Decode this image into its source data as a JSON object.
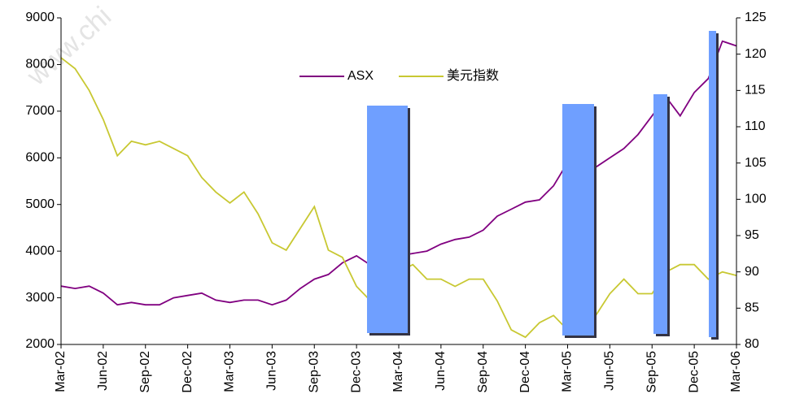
{
  "chart_data": {
    "type": "line",
    "watermark": "www.chi",
    "categories": [
      "Mar-02",
      null,
      null,
      "Jun-02",
      null,
      null,
      "Sep-02",
      null,
      null,
      "Dec-02",
      null,
      null,
      "Mar-03",
      null,
      null,
      "Jun-03",
      null,
      null,
      "Sep-03",
      null,
      null,
      "Dec-03",
      null,
      null,
      "Mar-04",
      null,
      null,
      "Jun-04",
      null,
      null,
      "Sep-04",
      null,
      null,
      "Dec-04",
      null,
      null,
      "Mar-05",
      null,
      null,
      "Jun-05",
      null,
      null,
      "Sep-05",
      null,
      null,
      "Dec-05",
      null,
      null,
      "Mar-06"
    ],
    "series": [
      {
        "name": "ASX",
        "color": "#800080",
        "axis": "y",
        "values": [
          3250,
          3200,
          3250,
          3100,
          2850,
          2900,
          2850,
          2850,
          3000,
          3050,
          3100,
          2950,
          2900,
          2950,
          2950,
          2850,
          2950,
          3200,
          3400,
          3500,
          3750,
          3900,
          3700,
          3850,
          3900,
          3950,
          4000,
          4150,
          4250,
          4300,
          4450,
          4750,
          4900,
          5050,
          5100,
          5400,
          5900,
          6100,
          5800,
          6000,
          6200,
          6500,
          6900,
          7300,
          6900,
          7400,
          7700,
          8500,
          8400
        ]
      },
      {
        "name": "美元指数",
        "color": "#c8c832",
        "axis": "y2",
        "values": [
          119.5,
          118,
          115,
          111,
          106,
          108,
          107.5,
          108,
          107,
          106,
          103,
          101,
          99.5,
          101,
          98,
          94,
          93,
          96,
          99,
          93,
          92,
          88,
          86,
          87,
          90,
          91,
          89,
          89,
          88,
          89,
          89,
          86,
          82,
          81,
          83,
          84,
          82,
          83,
          84,
          87,
          89,
          87,
          87,
          90,
          91,
          91,
          89,
          90,
          89.5
        ]
      }
    ],
    "ylim": [
      2000,
      9000
    ],
    "yticks": [
      2000,
      3000,
      4000,
      5000,
      6000,
      7000,
      8000,
      9000
    ],
    "y2lim": [
      80,
      125
    ],
    "y2ticks": [
      80,
      85,
      90,
      95,
      100,
      105,
      110,
      115,
      120,
      125
    ],
    "legend": "top"
  }
}
